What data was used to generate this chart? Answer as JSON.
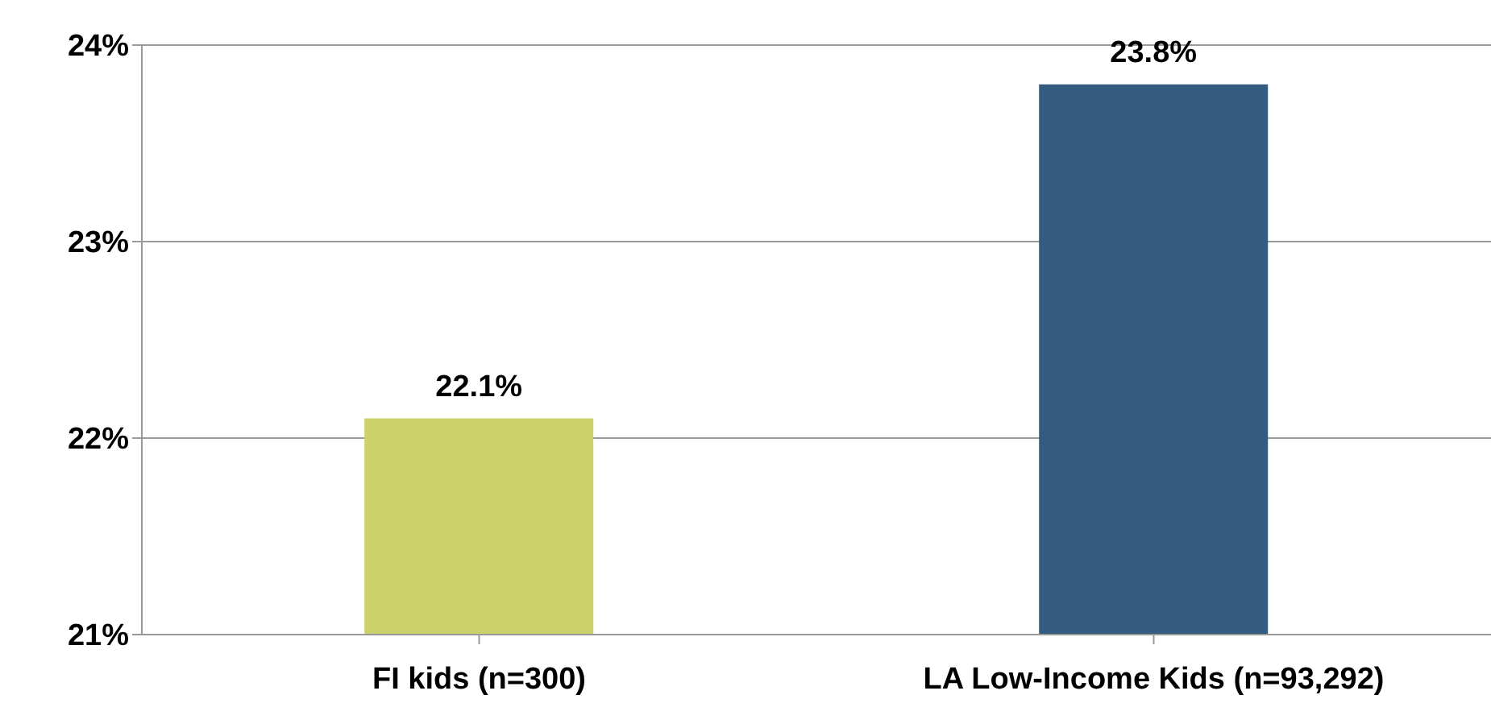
{
  "chart_data": {
    "type": "bar",
    "categories": [
      "FI kids (n=300)",
      "LA Low-Income Kids (n=93,292)"
    ],
    "values": [
      22.1,
      23.8
    ],
    "colors": [
      "#cdd16a",
      "#335c80"
    ],
    "value_labels": [
      "22.1%",
      "23.8%"
    ],
    "ylim": [
      21,
      24
    ],
    "yticks": [
      {
        "value": 21,
        "label": "21%"
      },
      {
        "value": 22,
        "label": "22%"
      },
      {
        "value": 23,
        "label": "23%"
      },
      {
        "value": 24,
        "label": "24%"
      }
    ],
    "grid": "y"
  }
}
